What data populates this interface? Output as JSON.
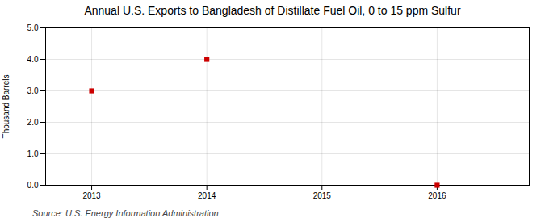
{
  "chart_data": {
    "type": "scatter",
    "title": "Annual U.S. Exports to Bangladesh of Distillate Fuel Oil, 0 to 15 ppm Sulfur",
    "ylabel": "Thousand Barrels",
    "source": "Source: U.S. Energy Information Administration",
    "x": [
      2013,
      2014,
      2016
    ],
    "values": [
      3.0,
      4.0,
      0.0
    ],
    "color": "#cc0000",
    "marker": "square",
    "xlim": [
      2012.6,
      2016.8
    ],
    "xticks": [
      2013,
      2014,
      2015,
      2016
    ],
    "ylim": [
      0.0,
      5.0
    ],
    "yticks": [
      {
        "value": 0.0,
        "label": "0.0"
      },
      {
        "value": 1.0,
        "label": "1.0"
      },
      {
        "value": 2.0,
        "label": "2.0"
      },
      {
        "value": 3.0,
        "label": "3.0"
      },
      {
        "value": 4.0,
        "label": "4.0"
      },
      {
        "value": 5.0,
        "label": "5.0"
      }
    ],
    "grid": true
  }
}
